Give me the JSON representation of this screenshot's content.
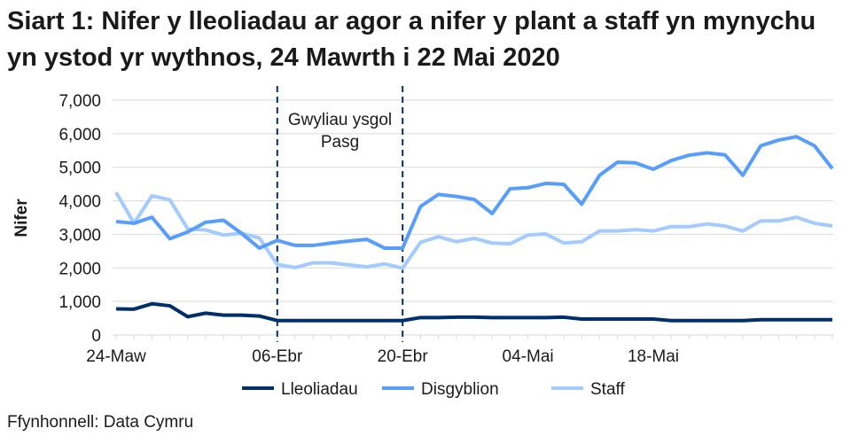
{
  "title": "Siart 1: Nifer y lleoliadau ar agor a nifer y plant a staff yn mynychu yn ystod yr wythnos, 24 Mawrth i 22 Mai 2020",
  "source": "Ffynhonnell: Data Cymru",
  "chart_data": {
    "type": "line",
    "title": "Siart 1: Nifer y lleoliadau ar agor a nifer y plant a staff yn mynychu yn ystod yr wythnos, 24 Mawrth i 22 Mai 2020",
    "ylabel": "Nifer",
    "xlabel": "",
    "ylim": [
      0,
      7000
    ],
    "yticks": [
      "0",
      "1,000",
      "2,000",
      "3,000",
      "4,000",
      "5,000",
      "6,000",
      "7,000"
    ],
    "yticks_values": [
      0,
      1000,
      2000,
      3000,
      4000,
      5000,
      6000,
      7000
    ],
    "xtick_labels": [
      {
        "index": 0,
        "label": "24-Maw"
      },
      {
        "index": 9,
        "label": "06-Ebr"
      },
      {
        "index": 16,
        "label": "20-Ebr"
      },
      {
        "index": 23,
        "label": "04-Mai"
      },
      {
        "index": 30,
        "label": "18-Mai"
      }
    ],
    "grid": true,
    "legend": "bottom",
    "annotation": {
      "lines": [
        "Gwyliau ysgol",
        "Pasg"
      ],
      "start_index": 9,
      "end_index": 16
    },
    "series": [
      {
        "name": "Lleoliadau",
        "color": "#002f6c",
        "values": [
          780,
          770,
          930,
          870,
          545,
          650,
          590,
          590,
          565,
          430,
          430,
          430,
          430,
          430,
          430,
          430,
          430,
          520,
          520,
          530,
          530,
          520,
          520,
          520,
          520,
          530,
          475,
          475,
          475,
          475,
          475,
          430,
          430,
          430,
          430,
          430,
          455,
          455,
          455,
          455,
          455
        ]
      },
      {
        "name": "Disgyblion",
        "color": "#569dfc",
        "values": [
          3380,
          3330,
          3510,
          2870,
          3070,
          3360,
          3420,
          3030,
          2590,
          2820,
          2670,
          2670,
          2740,
          2800,
          2850,
          2590,
          2590,
          3830,
          4190,
          4130,
          4040,
          3620,
          4360,
          4390,
          4520,
          4490,
          3900,
          4760,
          5150,
          5130,
          4940,
          5200,
          5360,
          5430,
          5370,
          4760,
          5640,
          5810,
          5910,
          5640,
          4960
        ]
      },
      {
        "name": "Staff",
        "color": "#a3cbfd",
        "values": [
          4250,
          3330,
          4150,
          4030,
          3160,
          3130,
          2980,
          3030,
          2890,
          2100,
          2010,
          2150,
          2150,
          2090,
          2030,
          2120,
          1990,
          2760,
          2930,
          2780,
          2880,
          2740,
          2720,
          2980,
          3010,
          2740,
          2780,
          3100,
          3100,
          3140,
          3100,
          3230,
          3230,
          3310,
          3250,
          3100,
          3400,
          3400,
          3510,
          3330,
          3250
        ]
      }
    ]
  }
}
